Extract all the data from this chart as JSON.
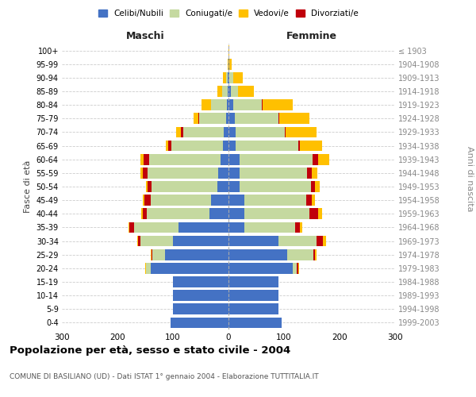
{
  "age_groups": [
    "0-4",
    "5-9",
    "10-14",
    "15-19",
    "20-24",
    "25-29",
    "30-34",
    "35-39",
    "40-44",
    "45-49",
    "50-54",
    "55-59",
    "60-64",
    "65-69",
    "70-74",
    "75-79",
    "80-84",
    "85-89",
    "90-94",
    "95-99",
    "100+"
  ],
  "birth_years": [
    "1999-2003",
    "1994-1998",
    "1989-1993",
    "1984-1988",
    "1979-1983",
    "1974-1978",
    "1969-1973",
    "1964-1968",
    "1959-1963",
    "1954-1958",
    "1949-1953",
    "1944-1948",
    "1939-1943",
    "1934-1938",
    "1929-1933",
    "1924-1928",
    "1919-1923",
    "1914-1918",
    "1909-1913",
    "1904-1908",
    "≤ 1903"
  ],
  "male_celibe": [
    105,
    100,
    100,
    100,
    140,
    115,
    100,
    90,
    35,
    32,
    20,
    18,
    15,
    10,
    8,
    5,
    3,
    2,
    1,
    0,
    0
  ],
  "male_coniugato": [
    0,
    0,
    0,
    0,
    8,
    22,
    58,
    80,
    112,
    108,
    118,
    128,
    128,
    93,
    73,
    48,
    28,
    10,
    4,
    0,
    0
  ],
  "male_vedovo": [
    0,
    0,
    0,
    0,
    1,
    1,
    1,
    2,
    2,
    3,
    3,
    5,
    5,
    5,
    8,
    8,
    18,
    8,
    5,
    1,
    0
  ],
  "male_divorziato": [
    0,
    0,
    0,
    0,
    1,
    2,
    5,
    8,
    8,
    12,
    8,
    8,
    10,
    5,
    5,
    2,
    0,
    0,
    0,
    0,
    0
  ],
  "female_celibe": [
    95,
    90,
    90,
    90,
    115,
    105,
    90,
    28,
    28,
    28,
    20,
    20,
    20,
    13,
    13,
    12,
    8,
    4,
    2,
    1,
    0
  ],
  "female_coniugato": [
    0,
    0,
    0,
    0,
    8,
    48,
    68,
    92,
    118,
    112,
    128,
    122,
    132,
    112,
    88,
    78,
    52,
    13,
    6,
    0,
    0
  ],
  "female_vedovo": [
    0,
    0,
    0,
    0,
    2,
    2,
    5,
    5,
    8,
    5,
    8,
    10,
    20,
    40,
    55,
    55,
    55,
    28,
    18,
    5,
    1
  ],
  "female_divorziato": [
    0,
    0,
    0,
    0,
    2,
    3,
    12,
    8,
    15,
    10,
    8,
    8,
    10,
    3,
    2,
    1,
    1,
    0,
    0,
    0,
    0
  ],
  "colors": {
    "celibe": "#4472c4",
    "coniugato": "#c5d9a0",
    "vedovo": "#ffc000",
    "divorziato": "#c0000b"
  },
  "title": "Popolazione per età, sesso e stato civile - 2004",
  "subtitle": "COMUNE DI BASILIANO (UD) - Dati ISTAT 1° gennaio 2004 - Elaborazione TUTTITALIA.IT",
  "xlabel_left": "Maschi",
  "xlabel_right": "Femmine",
  "ylabel_left": "Fasce di età",
  "ylabel_right": "Anni di nascita",
  "xlim": 300,
  "legend_labels": [
    "Celibi/Nubili",
    "Coniugati/e",
    "Vedovi/e",
    "Divorziati/e"
  ],
  "background_color": "#ffffff",
  "grid_color": "#cccccc"
}
